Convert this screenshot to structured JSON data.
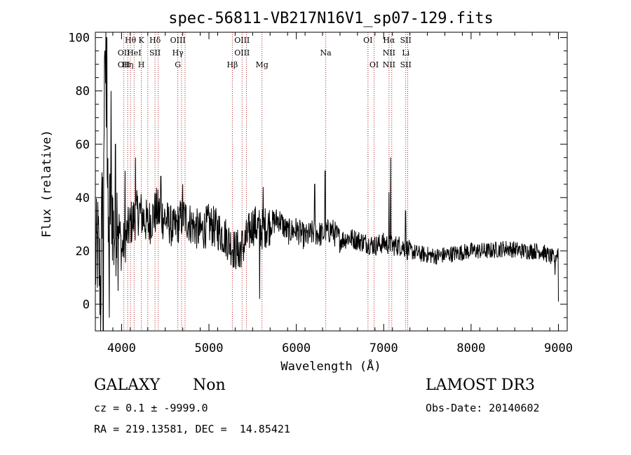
{
  "chart_data": {
    "type": "line",
    "title": "spec-56811-VB217N16V1_sp07-129.fits",
    "xlabel": "Wavelength (Å)",
    "ylabel": "Flux (relative)",
    "xlim": [
      3700,
      9100
    ],
    "ylim": [
      -10,
      102
    ],
    "xticks": [
      4000,
      5000,
      6000,
      7000,
      8000,
      9000
    ],
    "yticks": [
      0,
      20,
      40,
      60,
      80,
      100
    ],
    "line_color": "#000000",
    "marker_color": "#b22222",
    "spectrum_anchors": [
      [
        3700,
        15
      ],
      [
        3730,
        22
      ],
      [
        3760,
        5
      ],
      [
        3790,
        60
      ],
      [
        3820,
        90
      ],
      [
        3850,
        20
      ],
      [
        3880,
        45
      ],
      [
        3910,
        25
      ],
      [
        3950,
        35
      ],
      [
        4000,
        20
      ],
      [
        4100,
        30
      ],
      [
        4200,
        35
      ],
      [
        4300,
        30
      ],
      [
        4400,
        35
      ],
      [
        4500,
        32
      ],
      [
        4600,
        28
      ],
      [
        4700,
        33
      ],
      [
        4800,
        30
      ],
      [
        4900,
        27
      ],
      [
        5000,
        30
      ],
      [
        5100,
        28
      ],
      [
        5200,
        25
      ],
      [
        5300,
        20
      ],
      [
        5400,
        22
      ],
      [
        5500,
        30
      ],
      [
        5600,
        28
      ],
      [
        5700,
        30
      ],
      [
        5800,
        32
      ],
      [
        5900,
        27
      ],
      [
        6000,
        28
      ],
      [
        6100,
        25
      ],
      [
        6200,
        27
      ],
      [
        6300,
        26
      ],
      [
        6400,
        28
      ],
      [
        6500,
        24
      ],
      [
        6600,
        25
      ],
      [
        6700,
        24
      ],
      [
        6800,
        23
      ],
      [
        6900,
        22
      ],
      [
        7000,
        23
      ],
      [
        7100,
        22
      ],
      [
        7200,
        22
      ],
      [
        7300,
        20
      ],
      [
        7400,
        19
      ],
      [
        7600,
        18
      ],
      [
        7800,
        19
      ],
      [
        8000,
        20
      ],
      [
        8200,
        20
      ],
      [
        8400,
        21
      ],
      [
        8600,
        20
      ],
      [
        8800,
        20
      ],
      [
        8950,
        17
      ],
      [
        9000,
        20
      ]
    ],
    "spectrum_spikes": [
      [
        3760,
        -10
      ],
      [
        3790,
        -10
      ],
      [
        3810,
        95
      ],
      [
        3830,
        100
      ],
      [
        3860,
        -5
      ],
      [
        3880,
        80
      ],
      [
        3930,
        60
      ],
      [
        3960,
        5
      ],
      [
        4040,
        50
      ],
      [
        4160,
        55
      ],
      [
        4450,
        48
      ],
      [
        4700,
        45
      ],
      [
        5350,
        14
      ],
      [
        5580,
        2
      ],
      [
        5620,
        44
      ],
      [
        6210,
        45
      ],
      [
        6330,
        50
      ],
      [
        7060,
        42
      ],
      [
        7080,
        55
      ],
      [
        7250,
        35
      ],
      [
        8960,
        11
      ],
      [
        9000,
        1
      ]
    ],
    "lines": [
      {
        "wave": 4102,
        "labels": [
          "Hθ",
          "",
          ""
        ]
      },
      {
        "wave": 4026,
        "labels": [
          "",
          "OII",
          "OII"
        ]
      },
      {
        "wave": 4070,
        "labels": [
          "",
          "",
          "Hη"
        ]
      },
      {
        "wave": 4144,
        "labels": [
          "",
          "HeI",
          ""
        ]
      },
      {
        "wave": 4226,
        "labels": [
          "K",
          "",
          "H"
        ]
      },
      {
        "wave": 4300,
        "labels": [
          "",
          "",
          ""
        ]
      },
      {
        "wave": 4383,
        "labels": [
          "Hδ",
          "SII",
          ""
        ]
      },
      {
        "wave": 4420,
        "labels": [
          "",
          "",
          ""
        ]
      },
      {
        "wave": 4644,
        "labels": [
          "OIII",
          "Hγ",
          "G"
        ]
      },
      {
        "wave": 4686,
        "labels": [
          "",
          "",
          ""
        ]
      },
      {
        "wave": 4726,
        "labels": [
          "",
          "",
          ""
        ]
      },
      {
        "wave": 5268,
        "labels": [
          "",
          "",
          "Hβ"
        ]
      },
      {
        "wave": 5379,
        "labels": [
          "OIII",
          "OIII",
          ""
        ]
      },
      {
        "wave": 5430,
        "labels": [
          "",
          "",
          ""
        ]
      },
      {
        "wave": 5607,
        "labels": [
          "",
          "",
          "Mg"
        ]
      },
      {
        "wave": 6337,
        "labels": [
          "",
          "Na",
          ""
        ]
      },
      {
        "wave": 6820,
        "labels": [
          "OI",
          "",
          ""
        ]
      },
      {
        "wave": 6890,
        "labels": [
          "",
          "",
          "OI"
        ]
      },
      {
        "wave": 7061,
        "labels": [
          "Hα",
          "NII",
          "NII"
        ]
      },
      {
        "wave": 7092,
        "labels": [
          "",
          "",
          ""
        ]
      },
      {
        "wave": 7252,
        "labels": [
          "SII",
          "Li",
          "SII"
        ]
      },
      {
        "wave": 7275,
        "labels": [
          "",
          "",
          ""
        ]
      }
    ]
  },
  "footer": {
    "class_label": "GALAXY",
    "subclass_label": "Non",
    "survey_label": "LAMOST DR3",
    "cz_line": "cz = 0.1 ± -9999.0",
    "obs_date_line": "Obs-Date: 20140602",
    "coords_line": "RA = 219.13581, DEC =  14.85421"
  }
}
